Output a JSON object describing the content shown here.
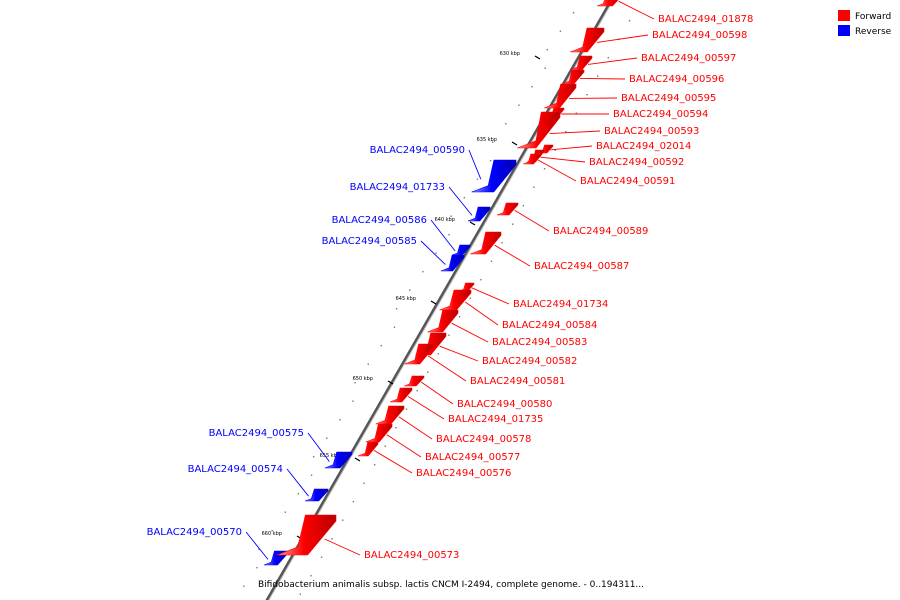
{
  "legend": {
    "forward_label": "Forward",
    "reverse_label": "Reverse",
    "forward_color": "#ff0000",
    "reverse_color": "#0000ff"
  },
  "caption": "Bifidobacterium animalis subsp. lactis CNCM I-2494, complete genome. - 0..194311...",
  "ticks": [
    "630 kbp",
    "635 kbp",
    "640 kbp",
    "645 kbp",
    "650 kbp",
    "655 kbp",
    "660 kbp"
  ],
  "genes": [
    {
      "name": "BALAC2494_01878",
      "strand": "forward"
    },
    {
      "name": "BALAC2494_00598",
      "strand": "forward"
    },
    {
      "name": "BALAC2494_00597",
      "strand": "forward"
    },
    {
      "name": "BALAC2494_00596",
      "strand": "forward"
    },
    {
      "name": "BALAC2494_00595",
      "strand": "forward"
    },
    {
      "name": "BALAC2494_00594",
      "strand": "forward"
    },
    {
      "name": "BALAC2494_00593",
      "strand": "forward"
    },
    {
      "name": "BALAC2494_02014",
      "strand": "forward"
    },
    {
      "name": "BALAC2494_00592",
      "strand": "forward"
    },
    {
      "name": "BALAC2494_00591",
      "strand": "forward"
    },
    {
      "name": "BALAC2494_00590",
      "strand": "reverse"
    },
    {
      "name": "BALAC2494_01733",
      "strand": "reverse"
    },
    {
      "name": "BALAC2494_00586",
      "strand": "reverse"
    },
    {
      "name": "BALAC2494_00585",
      "strand": "reverse"
    },
    {
      "name": "BALAC2494_00589",
      "strand": "forward"
    },
    {
      "name": "BALAC2494_00587",
      "strand": "forward"
    },
    {
      "name": "BALAC2494_01734",
      "strand": "forward"
    },
    {
      "name": "BALAC2494_00584",
      "strand": "forward"
    },
    {
      "name": "BALAC2494_00583",
      "strand": "forward"
    },
    {
      "name": "BALAC2494_00582",
      "strand": "forward"
    },
    {
      "name": "BALAC2494_00581",
      "strand": "forward"
    },
    {
      "name": "BALAC2494_00580",
      "strand": "forward"
    },
    {
      "name": "BALAC2494_01735",
      "strand": "forward"
    },
    {
      "name": "BALAC2494_00578",
      "strand": "forward"
    },
    {
      "name": "BALAC2494_00577",
      "strand": "forward"
    },
    {
      "name": "BALAC2494_00576",
      "strand": "forward"
    },
    {
      "name": "BALAC2494_00575",
      "strand": "reverse"
    },
    {
      "name": "BALAC2494_00574",
      "strand": "reverse"
    },
    {
      "name": "BALAC2494_00570",
      "strand": "reverse"
    },
    {
      "name": "BALAC2494_00573",
      "strand": "forward"
    }
  ]
}
